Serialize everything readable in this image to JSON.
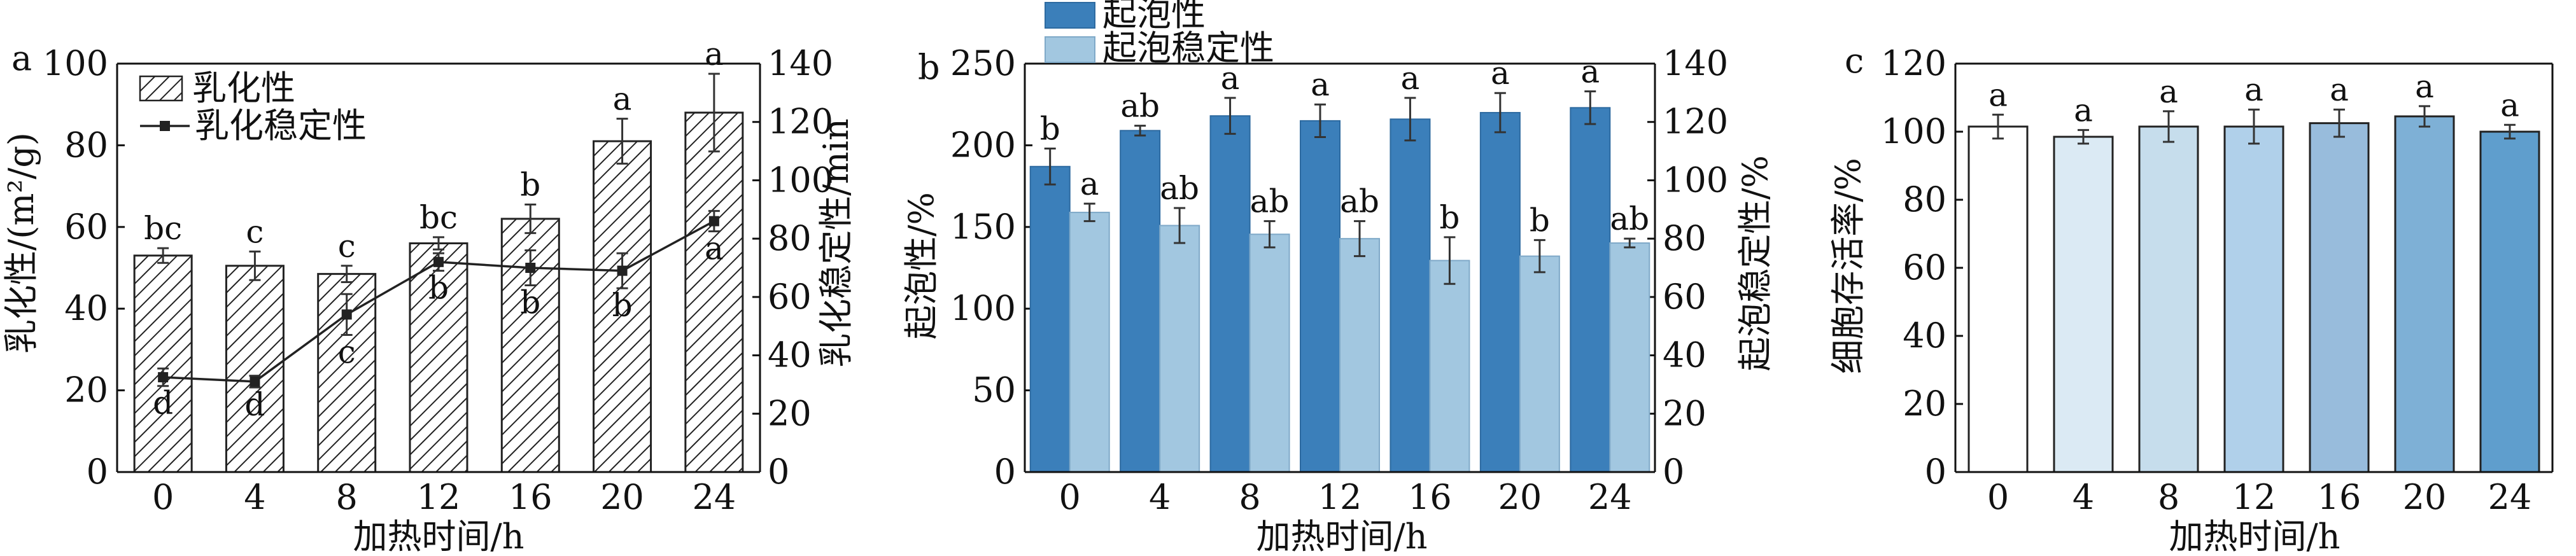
{
  "chart_data": [
    {
      "panel": "a",
      "type": "bar",
      "categories": [
        "0",
        "4",
        "8",
        "12",
        "16",
        "20",
        "24"
      ],
      "xlabel": "加热时间/h",
      "ylabel": "乳化性/(m²/g)",
      "ylabel_right": "乳化稳定性/min",
      "ylim": [
        0,
        100
      ],
      "yticks": [
        "0",
        "20",
        "40",
        "60",
        "80",
        "100"
      ],
      "ylim_right": [
        0,
        140
      ],
      "yticks_right": [
        "0",
        "20",
        "40",
        "60",
        "80",
        "100",
        "120",
        "140"
      ],
      "series": [
        {
          "name": "乳化性",
          "kind": "bar",
          "pattern": "diagonal-hatch",
          "values": [
            53.0,
            50.5,
            48.5,
            56.0,
            62.0,
            81.0,
            88.0
          ],
          "errors": [
            1.8,
            3.5,
            2.0,
            1.5,
            3.5,
            5.5,
            9.5
          ],
          "letters": [
            "bc",
            "c",
            "c",
            "bc",
            "b",
            "a",
            "a"
          ]
        },
        {
          "name": "乳化稳定性",
          "kind": "line",
          "axis": "right",
          "values": [
            32.5,
            31.0,
            54.0,
            72.0,
            70.0,
            69.0,
            86.0
          ],
          "errors": [
            3.0,
            2.0,
            7.0,
            3.0,
            6.0,
            6.0,
            3.5
          ],
          "letters": [
            "d",
            "d",
            "c",
            "b",
            "b",
            "b",
            "a"
          ]
        }
      ],
      "legend": "top-left",
      "colors": {
        "bar_fill": "#ffffff",
        "hatch": "#222222",
        "line": "#222222"
      }
    },
    {
      "panel": "b",
      "type": "bar",
      "categories": [
        "0",
        "4",
        "8",
        "12",
        "16",
        "20",
        "24"
      ],
      "xlabel": "加热时间/h",
      "ylabel": "起泡性/%",
      "ylabel_right": "起泡稳定性/%",
      "ylim": [
        0,
        250
      ],
      "yticks": [
        "0",
        "50",
        "100",
        "150",
        "200",
        "250"
      ],
      "ylim_right": [
        0,
        140
      ],
      "yticks_right": [
        "0",
        "20",
        "40",
        "60",
        "80",
        "100",
        "120",
        "140"
      ],
      "series": [
        {
          "name": "起泡性",
          "axis": "left",
          "color": "#3b7fba",
          "values": [
            187,
            209,
            218,
            215,
            216,
            220,
            223
          ],
          "errors": [
            11,
            3,
            11,
            10,
            13,
            12,
            10
          ],
          "letters": [
            "b",
            "ab",
            "a",
            "a",
            "a",
            "a",
            "a"
          ]
        },
        {
          "name": "起泡稳定性",
          "axis": "right",
          "color": "#a2c7e0",
          "values": [
            89,
            84.5,
            81.5,
            80,
            72.5,
            74,
            78.5
          ],
          "errors": [
            3,
            6,
            4.5,
            6,
            8,
            5.5,
            1.5
          ],
          "letters": [
            "a",
            "ab",
            "ab",
            "ab",
            "b",
            "b",
            "ab"
          ]
        }
      ],
      "legend": "top-left"
    },
    {
      "panel": "c",
      "type": "bar",
      "categories": [
        "0",
        "4",
        "8",
        "12",
        "16",
        "20",
        "24"
      ],
      "xlabel": "加热时间/h",
      "ylabel": "细胞存活率/%",
      "ylim": [
        0,
        120
      ],
      "yticks": [
        "0",
        "20",
        "40",
        "60",
        "80",
        "100",
        "120"
      ],
      "series": [
        {
          "values": [
            101.5,
            98.5,
            101.5,
            101.5,
            102.5,
            104.5,
            100
          ],
          "errors": [
            3.5,
            2,
            4.5,
            5,
            4,
            3,
            2
          ],
          "letters": [
            "a",
            "a",
            "a",
            "a",
            "a",
            "a",
            "a"
          ]
        }
      ],
      "bar_colors": [
        "#ffffff",
        "#dbeaf4",
        "#c6ddec",
        "#b0d0ea",
        "#98bcdc",
        "#7eb0d6",
        "#5f9ecd"
      ]
    }
  ]
}
